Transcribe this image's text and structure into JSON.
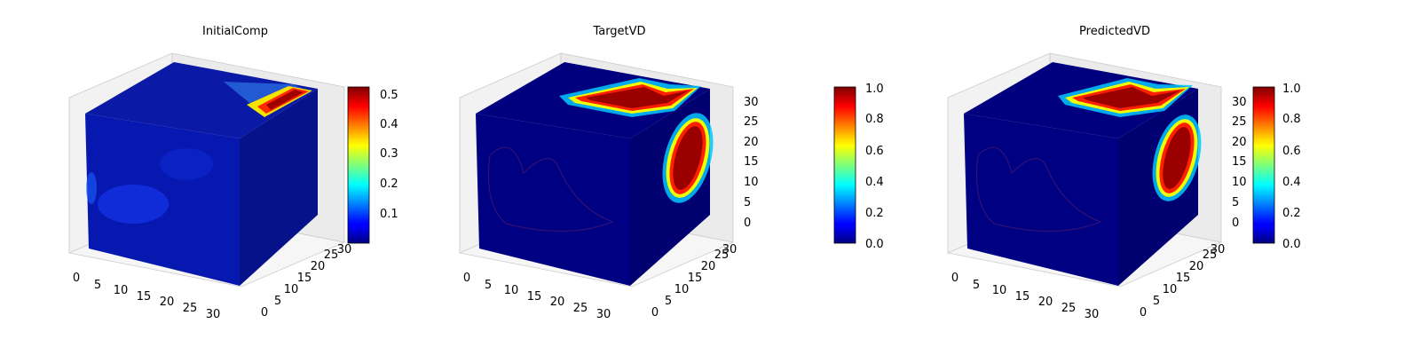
{
  "chart_data": [
    {
      "type": "3d-voxel",
      "title": "InitialComp",
      "colormap": "jet",
      "axes": {
        "x_ticks": [
          "0",
          "5",
          "10",
          "15",
          "20",
          "25",
          "30"
        ],
        "y_ticks": [
          "0",
          "5",
          "10",
          "15",
          "20",
          "25",
          "30"
        ],
        "z_ticks": []
      },
      "colorbar": {
        "min": 0.02,
        "max": 0.53,
        "ticks": [
          "0.1",
          "0.2",
          "0.3",
          "0.4",
          "0.5"
        ]
      },
      "features": {
        "top_face": "low values with a bright band near the back-right edge peaking about 0.5",
        "front_face": "uniform low values with faint blue patches",
        "right_face": "uniform low values"
      }
    },
    {
      "type": "3d-voxel",
      "title": "TargetVD",
      "colormap": "jet",
      "axes": {
        "x_ticks": [
          "0",
          "5",
          "10",
          "15",
          "20",
          "25",
          "30"
        ],
        "y_ticks": [
          "0",
          "5",
          "10",
          "15",
          "20",
          "25",
          "30"
        ],
        "z_ticks": [
          "0",
          "5",
          "10",
          "15",
          "20",
          "25",
          "30"
        ]
      },
      "colorbar": {
        "min": 0.0,
        "max": 1.0,
        "ticks": [
          "0.0",
          "0.2",
          "0.4",
          "0.6",
          "0.8",
          "1.0"
        ]
      },
      "features": {
        "top_face": "L-shaped high region (1.0) near the back",
        "front_face": "faint interior outline",
        "right_face": "elongated high region (1.0) near the back edge"
      }
    },
    {
      "type": "3d-voxel",
      "title": "PredictedVD",
      "colormap": "jet",
      "axes": {
        "x_ticks": [
          "0",
          "5",
          "10",
          "15",
          "20",
          "25",
          "30"
        ],
        "y_ticks": [
          "0",
          "5",
          "10",
          "15",
          "20",
          "25",
          "30"
        ],
        "z_ticks": [
          "0",
          "5",
          "10",
          "15",
          "20",
          "25",
          "30"
        ]
      },
      "colorbar": {
        "min": 0.0,
        "max": 1.0,
        "ticks": [
          "0.0",
          "0.2",
          "0.4",
          "0.6",
          "0.8",
          "1.0"
        ]
      },
      "features": {
        "top_face": "L-shaped high region (1.0) near the back",
        "front_face": "faint interior outline",
        "right_face": "elongated high region (1.0) near the back edge"
      }
    }
  ]
}
